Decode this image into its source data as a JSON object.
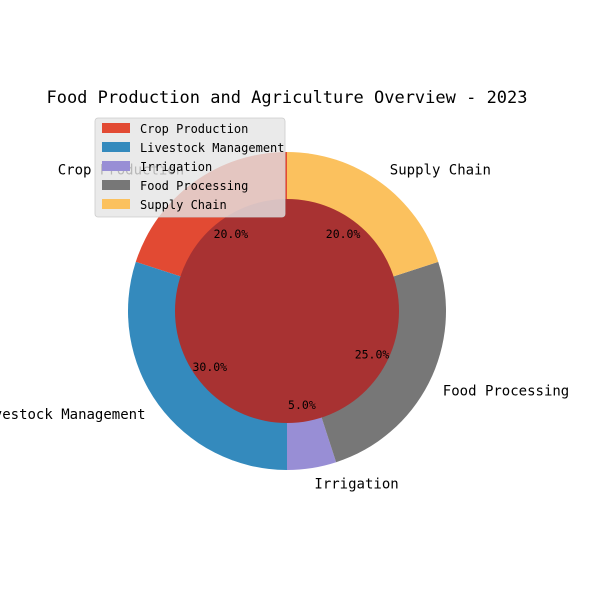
{
  "chart_data": {
    "type": "pie",
    "title": "Food Production and Agriculture Overview - 2023",
    "categories": [
      "Crop Production",
      "Livestock Management",
      "Irrigation",
      "Food Processing",
      "Supply Chain"
    ],
    "values": [
      20,
      30,
      5,
      25,
      20
    ],
    "percent_labels": [
      "20.0%",
      "30.0%",
      "5.0%",
      "25.0%",
      "20.0%"
    ],
    "colors": [
      "#e24a33",
      "#348abd",
      "#988ed5",
      "#777777",
      "#fbc15e"
    ],
    "center_color": "#a83232",
    "start_angle_deg": 90,
    "direction": "counterclockwise",
    "donut": true,
    "legend": "top-left"
  }
}
